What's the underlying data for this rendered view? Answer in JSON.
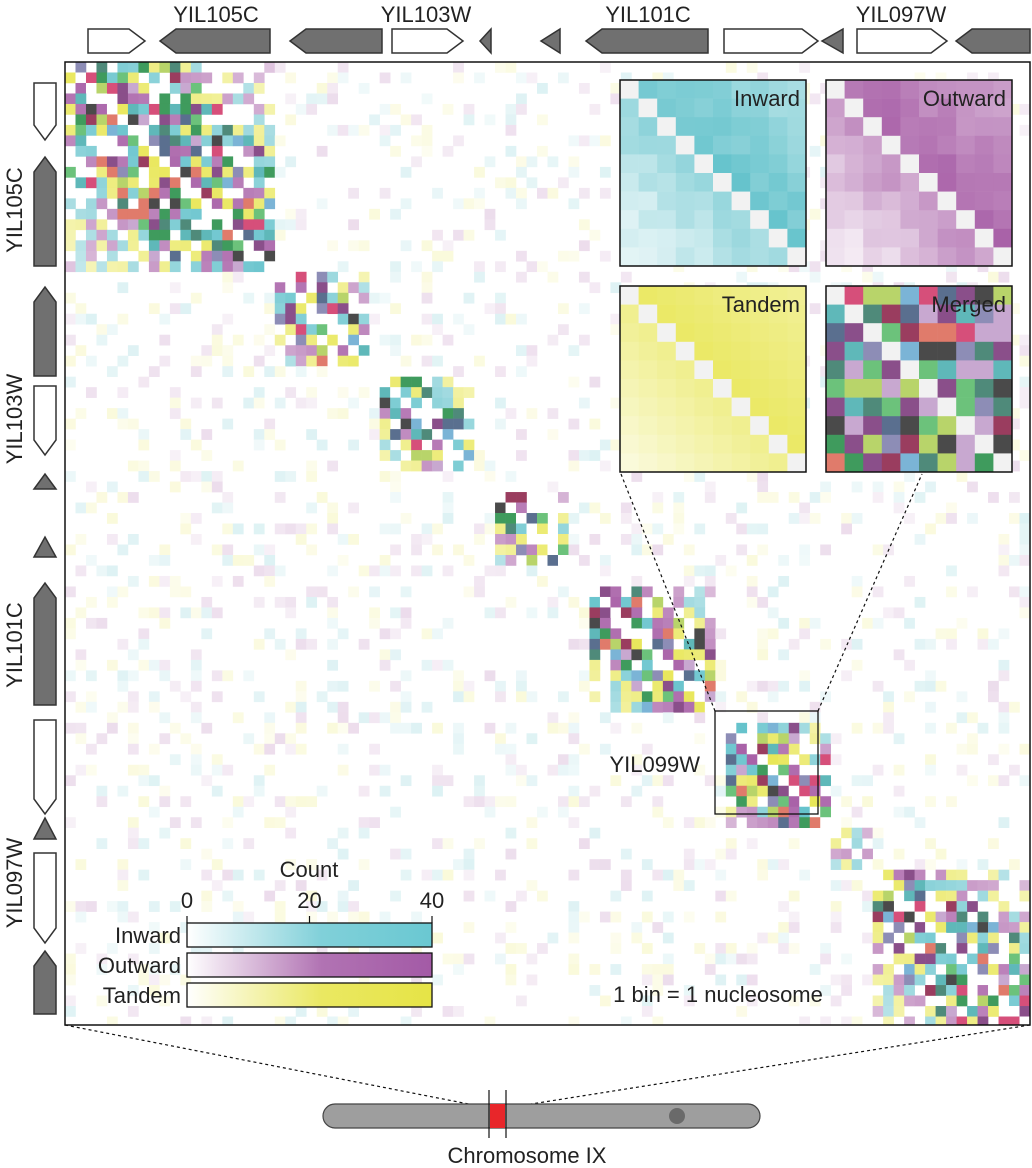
{
  "chart_data": {
    "type": "heatmap",
    "title": "",
    "resolution_note": "1 bin = 1 nucleosome",
    "colorbar": {
      "title": "Count",
      "range": [
        0,
        40
      ],
      "ticks": [
        0,
        20,
        40
      ],
      "rows": [
        {
          "label": "Inward",
          "color": "#6ac8d2"
        },
        {
          "label": "Outward",
          "color": "#a35aa6"
        },
        {
          "label": "Tandem",
          "color": "#e6e446"
        }
      ]
    },
    "genes_top": [
      {
        "orientation": "right",
        "fill": "white"
      },
      {
        "label": "YIL105C",
        "orientation": "left",
        "fill": "gray"
      },
      {
        "orientation": "left",
        "fill": "gray"
      },
      {
        "label": "YIL103W",
        "orientation": "right",
        "fill": "white"
      },
      {
        "orientation": "left",
        "fill": "gray"
      },
      {
        "orientation": "left",
        "fill": "gray"
      },
      {
        "label": "YIL101C",
        "orientation": "left",
        "fill": "gray"
      },
      {
        "orientation": "right",
        "fill": "white"
      },
      {
        "orientation": "left",
        "fill": "gray"
      },
      {
        "label": "YIL097W",
        "orientation": "right",
        "fill": "white"
      },
      {
        "orientation": "left",
        "fill": "gray"
      }
    ],
    "gene_labels_left": [
      "YIL105C",
      "YIL103W",
      "YIL101C",
      "YIL097W"
    ],
    "highlight_box": {
      "label": "YIL099W",
      "bins": [
        63,
        72
      ]
    },
    "insets": [
      {
        "label": "Inward",
        "palette": "inward"
      },
      {
        "label": "Outward",
        "palette": "outward"
      },
      {
        "label": "Tandem",
        "palette": "tandem"
      },
      {
        "label": "Merged",
        "palette": "merged"
      }
    ],
    "domains": [
      {
        "start": 0,
        "end": 19,
        "intensity": 0.85
      },
      {
        "start": 20,
        "end": 28,
        "intensity": 0.8
      },
      {
        "start": 30,
        "end": 38,
        "intensity": 0.75
      },
      {
        "start": 41,
        "end": 47,
        "intensity": 0.75
      },
      {
        "start": 50,
        "end": 61,
        "intensity": 0.9
      },
      {
        "start": 63,
        "end": 72,
        "intensity": 0.95
      },
      {
        "start": 73,
        "end": 76,
        "intensity": 0.5
      },
      {
        "start": 77,
        "end": 92,
        "intensity": 0.75
      }
    ],
    "n_bins": 92,
    "chromosome": {
      "label": "Chromosome IX"
    }
  }
}
